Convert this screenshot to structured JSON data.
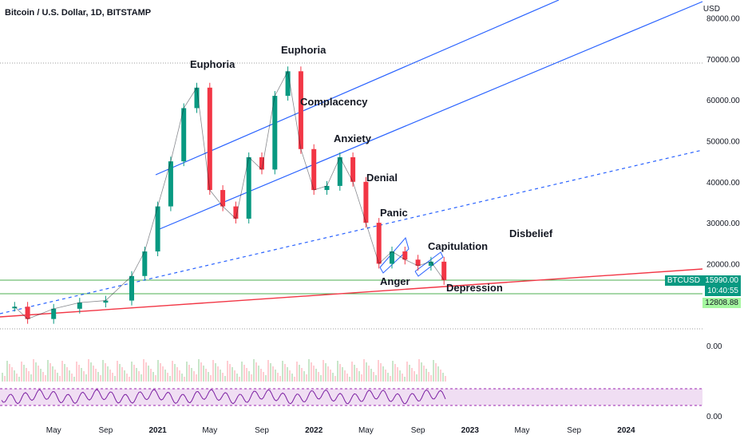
{
  "header": {
    "title": "Bitcoin / U.S. Dollar, 1D, BITSTAMP",
    "currency": "USD"
  },
  "tags": {
    "symbol": "BTCUSD",
    "price": "15990.00",
    "timer": "10:40:55",
    "support": "12808.88"
  },
  "annotations": [
    "Euphoria",
    "Euphoria",
    "Complacency",
    "Anxiety",
    "Denial",
    "Panic",
    "Capitulation",
    "Disbelief",
    "Anger",
    "Depression"
  ],
  "colors": {
    "up": "#089981",
    "down": "#f23645",
    "channel": "#2962ff",
    "support_line": "#f23645",
    "hline_green": "#4caf50",
    "rsi": "#7b1fa2",
    "rsi_band": "#e1bee7"
  },
  "chart_data": {
    "type": "line",
    "title": "Bitcoin / U.S. Dollar, 1D, BITSTAMP",
    "ylabel": "USD",
    "yticks": [
      "80000.00",
      "70000.00",
      "60000.00",
      "50000.00",
      "40000.00",
      "30000.00",
      "20000.00",
      "0.00"
    ],
    "xticks": [
      "May",
      "Sep",
      "2021",
      "May",
      "Sep",
      "2022",
      "May",
      "Sep",
      "2023",
      "May",
      "Sep",
      "2024"
    ],
    "series": [
      {
        "name": "BTCUSD",
        "x": [
          "2020-02",
          "2020-03",
          "2020-05",
          "2020-07",
          "2020-09",
          "2020-11",
          "2020-12",
          "2021-01",
          "2021-02",
          "2021-03",
          "2021-04",
          "2021-05",
          "2021-06",
          "2021-07",
          "2021-08",
          "2021-09",
          "2021-10",
          "2021-11",
          "2021-12",
          "2022-01",
          "2022-02",
          "2022-03",
          "2022-04",
          "2022-05",
          "2022-06",
          "2022-07",
          "2022-08",
          "2022-09",
          "2022-10",
          "2022-11"
        ],
        "values": [
          9500,
          6500,
          9000,
          10500,
          11000,
          17000,
          23000,
          34000,
          45000,
          58000,
          63000,
          38000,
          34000,
          31000,
          46000,
          43000,
          61000,
          67000,
          48000,
          38000,
          39000,
          46000,
          40000,
          30000,
          20000,
          23000,
          21000,
          19500,
          20500,
          16000
        ]
      }
    ],
    "annotations": [
      "Euphoria",
      "Euphoria",
      "Complacency",
      "Anxiety",
      "Denial",
      "Panic",
      "Capitulation",
      "Disbelief",
      "Anger",
      "Depression"
    ],
    "ylim": [
      0,
      80000
    ]
  }
}
